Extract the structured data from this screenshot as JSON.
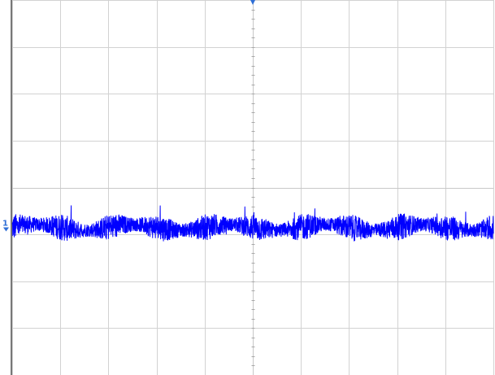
{
  "chart_data": {
    "type": "line",
    "title": "",
    "xlabel": "",
    "ylabel": "",
    "divisions": {
      "horizontal": 10,
      "vertical": 8
    },
    "xlim": [
      0,
      10
    ],
    "ylim": [
      -4,
      4
    ],
    "grid": true,
    "trace": {
      "color": "#0000ff",
      "offset_div": -0.85,
      "noise_peak_to_peak_div": 0.55,
      "spikes_div": 0.45,
      "modulation_periods_per_screen": 10
    },
    "markers": {
      "trigger_marker": {
        "color": "#2f6fd6",
        "x_div": 5
      },
      "channel_marker": {
        "color": "#2f6fd6",
        "label": "1",
        "y_div": -0.85
      }
    }
  }
}
